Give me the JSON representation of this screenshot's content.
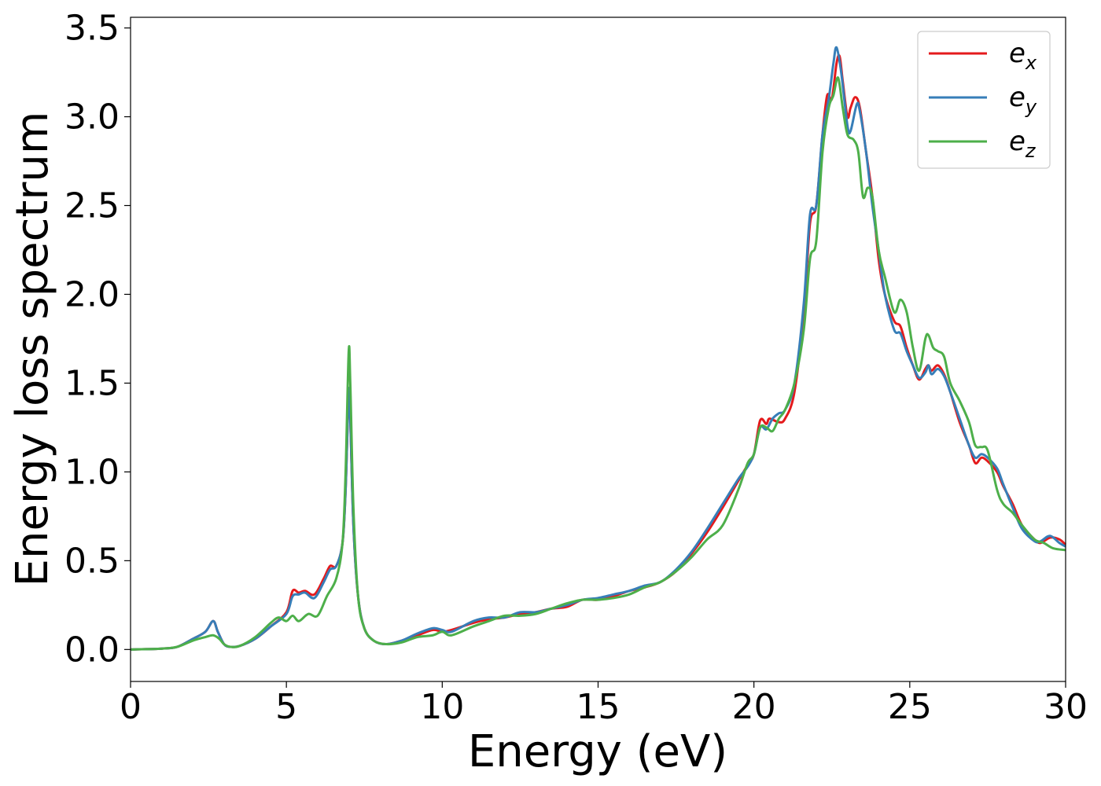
{
  "chart_data": {
    "type": "line",
    "xlabel": "Energy (eV)",
    "ylabel": "Energy loss spectrum",
    "xlim": [
      0,
      30
    ],
    "ylim": [
      -0.18,
      3.56
    ],
    "xticks": [
      "0",
      "5",
      "10",
      "15",
      "20",
      "25",
      "30"
    ],
    "yticks": [
      "0.0",
      "0.5",
      "1.0",
      "1.5",
      "2.0",
      "2.5",
      "3.0",
      "3.5"
    ],
    "legend_position": "top-right",
    "grid": false,
    "series": [
      {
        "name": "e_x",
        "label_main": "e",
        "label_sub": "x",
        "color": "#e41a1c",
        "points": [
          [
            0,
            0
          ],
          [
            1,
            0.005
          ],
          [
            1.5,
            0.015
          ],
          [
            2,
            0.06
          ],
          [
            2.4,
            0.1
          ],
          [
            2.65,
            0.16
          ],
          [
            2.8,
            0.1
          ],
          [
            3,
            0.03
          ],
          [
            3.2,
            0.015
          ],
          [
            3.5,
            0.02
          ],
          [
            4,
            0.06
          ],
          [
            4.5,
            0.13
          ],
          [
            5,
            0.21
          ],
          [
            5.2,
            0.33
          ],
          [
            5.4,
            0.32
          ],
          [
            5.6,
            0.33
          ],
          [
            5.9,
            0.31
          ],
          [
            6.2,
            0.4
          ],
          [
            6.4,
            0.47
          ],
          [
            6.6,
            0.47
          ],
          [
            6.8,
            0.6
          ],
          [
            6.9,
            0.9
          ],
          [
            7,
            1.45
          ],
          [
            7.05,
            1.3
          ],
          [
            7.15,
            0.7
          ],
          [
            7.3,
            0.3
          ],
          [
            7.5,
            0.12
          ],
          [
            7.8,
            0.05
          ],
          [
            8.2,
            0.03
          ],
          [
            8.7,
            0.05
          ],
          [
            9.2,
            0.08
          ],
          [
            9.7,
            0.11
          ],
          [
            10,
            0.1
          ],
          [
            10.3,
            0.11
          ],
          [
            11,
            0.15
          ],
          [
            11.5,
            0.17
          ],
          [
            12,
            0.18
          ],
          [
            12.5,
            0.2
          ],
          [
            13,
            0.21
          ],
          [
            13.5,
            0.23
          ],
          [
            14,
            0.24
          ],
          [
            14.5,
            0.28
          ],
          [
            15,
            0.28
          ],
          [
            15.5,
            0.3
          ],
          [
            16,
            0.33
          ],
          [
            16.5,
            0.35
          ],
          [
            17,
            0.38
          ],
          [
            17.5,
            0.44
          ],
          [
            18,
            0.54
          ],
          [
            18.5,
            0.66
          ],
          [
            19,
            0.8
          ],
          [
            19.5,
            0.95
          ],
          [
            19.8,
            1.04
          ],
          [
            20,
            1.1
          ],
          [
            20.2,
            1.29
          ],
          [
            20.4,
            1.27
          ],
          [
            20.5,
            1.3
          ],
          [
            20.8,
            1.28
          ],
          [
            21,
            1.3
          ],
          [
            21.3,
            1.45
          ],
          [
            21.6,
            1.9
          ],
          [
            21.8,
            2.4
          ],
          [
            22,
            2.5
          ],
          [
            22.2,
            2.9
          ],
          [
            22.35,
            3.12
          ],
          [
            22.5,
            3.1
          ],
          [
            22.65,
            3.3
          ],
          [
            22.75,
            3.34
          ],
          [
            22.85,
            3.2
          ],
          [
            23,
            3.0
          ],
          [
            23.1,
            3.05
          ],
          [
            23.25,
            3.11
          ],
          [
            23.4,
            3.05
          ],
          [
            23.6,
            2.8
          ],
          [
            23.8,
            2.55
          ],
          [
            24,
            2.2
          ],
          [
            24.2,
            2.0
          ],
          [
            24.5,
            1.85
          ],
          [
            24.7,
            1.82
          ],
          [
            24.9,
            1.7
          ],
          [
            25.1,
            1.6
          ],
          [
            25.3,
            1.52
          ],
          [
            25.5,
            1.58
          ],
          [
            25.6,
            1.6
          ],
          [
            25.7,
            1.57
          ],
          [
            25.9,
            1.6
          ],
          [
            26.1,
            1.55
          ],
          [
            26.3,
            1.45
          ],
          [
            26.6,
            1.28
          ],
          [
            26.9,
            1.15
          ],
          [
            27.1,
            1.05
          ],
          [
            27.3,
            1.08
          ],
          [
            27.5,
            1.06
          ],
          [
            27.8,
            1.0
          ],
          [
            28,
            0.92
          ],
          [
            28.3,
            0.82
          ],
          [
            28.6,
            0.7
          ],
          [
            29,
            0.62
          ],
          [
            29.2,
            0.6
          ],
          [
            29.5,
            0.63
          ],
          [
            29.8,
            0.62
          ],
          [
            30,
            0.59
          ]
        ]
      },
      {
        "name": "e_y",
        "label_main": "e",
        "label_sub": "y",
        "color": "#377eb8",
        "points": [
          [
            0,
            0
          ],
          [
            1,
            0.005
          ],
          [
            1.5,
            0.015
          ],
          [
            2,
            0.06
          ],
          [
            2.4,
            0.1
          ],
          [
            2.65,
            0.16
          ],
          [
            2.8,
            0.1
          ],
          [
            3,
            0.03
          ],
          [
            3.2,
            0.015
          ],
          [
            3.5,
            0.02
          ],
          [
            4,
            0.06
          ],
          [
            4.5,
            0.13
          ],
          [
            5,
            0.2
          ],
          [
            5.2,
            0.3
          ],
          [
            5.4,
            0.31
          ],
          [
            5.6,
            0.32
          ],
          [
            5.9,
            0.29
          ],
          [
            6.2,
            0.38
          ],
          [
            6.4,
            0.45
          ],
          [
            6.6,
            0.47
          ],
          [
            6.8,
            0.6
          ],
          [
            6.9,
            0.9
          ],
          [
            7,
            1.45
          ],
          [
            7.05,
            1.3
          ],
          [
            7.15,
            0.7
          ],
          [
            7.3,
            0.3
          ],
          [
            7.5,
            0.12
          ],
          [
            7.8,
            0.05
          ],
          [
            8.2,
            0.03
          ],
          [
            8.7,
            0.05
          ],
          [
            9.2,
            0.09
          ],
          [
            9.7,
            0.12
          ],
          [
            10,
            0.11
          ],
          [
            10.3,
            0.1
          ],
          [
            11,
            0.16
          ],
          [
            11.5,
            0.18
          ],
          [
            12,
            0.18
          ],
          [
            12.5,
            0.21
          ],
          [
            13,
            0.21
          ],
          [
            13.5,
            0.23
          ],
          [
            14,
            0.25
          ],
          [
            14.5,
            0.28
          ],
          [
            15,
            0.29
          ],
          [
            15.5,
            0.31
          ],
          [
            16,
            0.33
          ],
          [
            16.5,
            0.36
          ],
          [
            17,
            0.38
          ],
          [
            17.5,
            0.45
          ],
          [
            18,
            0.55
          ],
          [
            18.5,
            0.68
          ],
          [
            19,
            0.82
          ],
          [
            19.5,
            0.96
          ],
          [
            19.8,
            1.03
          ],
          [
            20,
            1.1
          ],
          [
            20.2,
            1.25
          ],
          [
            20.4,
            1.24
          ],
          [
            20.6,
            1.3
          ],
          [
            20.8,
            1.33
          ],
          [
            21,
            1.35
          ],
          [
            21.3,
            1.5
          ],
          [
            21.6,
            1.95
          ],
          [
            21.8,
            2.45
          ],
          [
            22,
            2.5
          ],
          [
            22.2,
            2.9
          ],
          [
            22.4,
            3.1
          ],
          [
            22.55,
            3.3
          ],
          [
            22.65,
            3.39
          ],
          [
            22.8,
            3.25
          ],
          [
            23,
            2.95
          ],
          [
            23.1,
            2.92
          ],
          [
            23.3,
            3.07
          ],
          [
            23.4,
            3.03
          ],
          [
            23.6,
            2.8
          ],
          [
            23.8,
            2.5
          ],
          [
            24,
            2.25
          ],
          [
            24.2,
            2.0
          ],
          [
            24.5,
            1.8
          ],
          [
            24.7,
            1.78
          ],
          [
            24.9,
            1.68
          ],
          [
            25.1,
            1.6
          ],
          [
            25.3,
            1.53
          ],
          [
            25.5,
            1.56
          ],
          [
            25.6,
            1.6
          ],
          [
            25.7,
            1.55
          ],
          [
            25.9,
            1.58
          ],
          [
            26.1,
            1.54
          ],
          [
            26.3,
            1.45
          ],
          [
            26.6,
            1.3
          ],
          [
            26.9,
            1.15
          ],
          [
            27.1,
            1.08
          ],
          [
            27.3,
            1.1
          ],
          [
            27.5,
            1.08
          ],
          [
            27.8,
            1.02
          ],
          [
            28,
            0.93
          ],
          [
            28.3,
            0.8
          ],
          [
            28.6,
            0.68
          ],
          [
            29,
            0.61
          ],
          [
            29.2,
            0.61
          ],
          [
            29.5,
            0.64
          ],
          [
            29.8,
            0.6
          ],
          [
            30,
            0.58
          ]
        ]
      },
      {
        "name": "e_z",
        "label_main": "e",
        "label_sub": "z",
        "color": "#4daf4a",
        "points": [
          [
            0,
            0
          ],
          [
            1,
            0.005
          ],
          [
            1.5,
            0.015
          ],
          [
            2,
            0.05
          ],
          [
            2.4,
            0.07
          ],
          [
            2.65,
            0.08
          ],
          [
            2.85,
            0.06
          ],
          [
            3,
            0.03
          ],
          [
            3.2,
            0.015
          ],
          [
            3.5,
            0.02
          ],
          [
            4,
            0.07
          ],
          [
            4.5,
            0.15
          ],
          [
            4.75,
            0.18
          ],
          [
            5,
            0.16
          ],
          [
            5.2,
            0.19
          ],
          [
            5.4,
            0.16
          ],
          [
            5.7,
            0.2
          ],
          [
            6,
            0.19
          ],
          [
            6.3,
            0.3
          ],
          [
            6.6,
            0.4
          ],
          [
            6.8,
            0.6
          ],
          [
            6.9,
            1.0
          ],
          [
            7,
            1.68
          ],
          [
            7.05,
            1.5
          ],
          [
            7.15,
            0.8
          ],
          [
            7.3,
            0.3
          ],
          [
            7.5,
            0.12
          ],
          [
            7.8,
            0.05
          ],
          [
            8.2,
            0.03
          ],
          [
            8.7,
            0.04
          ],
          [
            9.2,
            0.07
          ],
          [
            9.7,
            0.08
          ],
          [
            10,
            0.1
          ],
          [
            10.3,
            0.08
          ],
          [
            11,
            0.13
          ],
          [
            11.5,
            0.16
          ],
          [
            12,
            0.19
          ],
          [
            12.5,
            0.19
          ],
          [
            13,
            0.2
          ],
          [
            13.5,
            0.23
          ],
          [
            14,
            0.26
          ],
          [
            14.5,
            0.28
          ],
          [
            15,
            0.28
          ],
          [
            15.5,
            0.29
          ],
          [
            16,
            0.31
          ],
          [
            16.5,
            0.35
          ],
          [
            17,
            0.38
          ],
          [
            17.5,
            0.44
          ],
          [
            18,
            0.52
          ],
          [
            18.5,
            0.62
          ],
          [
            19,
            0.7
          ],
          [
            19.5,
            0.9
          ],
          [
            19.8,
            1.05
          ],
          [
            20,
            1.1
          ],
          [
            20.2,
            1.25
          ],
          [
            20.4,
            1.25
          ],
          [
            20.6,
            1.23
          ],
          [
            20.8,
            1.3
          ],
          [
            21,
            1.35
          ],
          [
            21.3,
            1.5
          ],
          [
            21.6,
            1.8
          ],
          [
            21.8,
            2.2
          ],
          [
            22,
            2.3
          ],
          [
            22.2,
            2.8
          ],
          [
            22.4,
            3.05
          ],
          [
            22.55,
            3.12
          ],
          [
            22.7,
            3.22
          ],
          [
            22.85,
            3.05
          ],
          [
            23,
            2.9
          ],
          [
            23.2,
            2.87
          ],
          [
            23.35,
            2.8
          ],
          [
            23.5,
            2.55
          ],
          [
            23.65,
            2.6
          ],
          [
            23.8,
            2.55
          ],
          [
            24,
            2.25
          ],
          [
            24.2,
            2.1
          ],
          [
            24.5,
            1.9
          ],
          [
            24.7,
            1.97
          ],
          [
            24.9,
            1.9
          ],
          [
            25.1,
            1.7
          ],
          [
            25.3,
            1.57
          ],
          [
            25.5,
            1.75
          ],
          [
            25.6,
            1.77
          ],
          [
            25.75,
            1.7
          ],
          [
            25.9,
            1.68
          ],
          [
            26.1,
            1.65
          ],
          [
            26.3,
            1.5
          ],
          [
            26.6,
            1.4
          ],
          [
            26.9,
            1.28
          ],
          [
            27.1,
            1.15
          ],
          [
            27.3,
            1.14
          ],
          [
            27.5,
            1.12
          ],
          [
            27.8,
            0.9
          ],
          [
            28,
            0.82
          ],
          [
            28.3,
            0.77
          ],
          [
            28.6,
            0.7
          ],
          [
            29,
            0.62
          ],
          [
            29.3,
            0.6
          ],
          [
            29.6,
            0.57
          ],
          [
            30,
            0.56
          ]
        ]
      }
    ]
  }
}
